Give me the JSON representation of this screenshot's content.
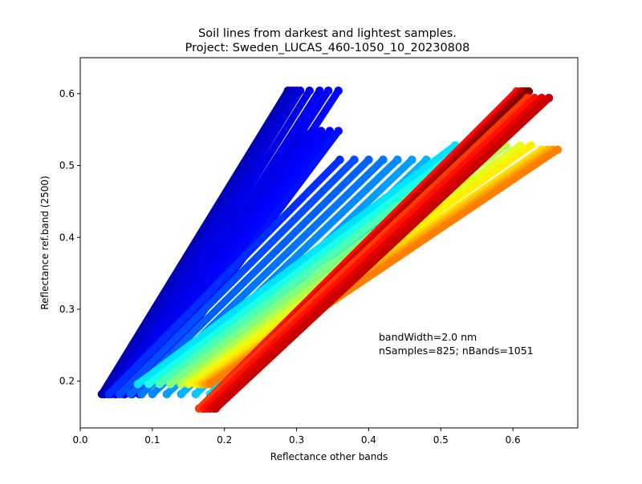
{
  "chart_data": {
    "type": "scatter",
    "title_line1": "Soil lines from darkest and lightest samples.",
    "title_line2": "Project: Sweden_LUCAS_460-1050_10_20230808",
    "xlabel": "Reflectance other bands",
    "ylabel": "Reflectance ref.band (2500)",
    "xlim": [
      0.0,
      0.69
    ],
    "ylim": [
      0.135,
      0.65
    ],
    "xticks": [
      0.0,
      0.1,
      0.2,
      0.3,
      0.4,
      0.5,
      0.6
    ],
    "xtick_labels": [
      "0.0",
      "0.1",
      "0.2",
      "0.3",
      "0.4",
      "0.5",
      "0.6"
    ],
    "yticks": [
      0.2,
      0.3,
      0.4,
      0.5,
      0.6
    ],
    "ytick_labels": [
      "0.2",
      "0.3",
      "0.4",
      "0.5",
      "0.6"
    ],
    "grid": false,
    "colormap": "jet",
    "annotation_line1": "bandWidth=2.0 nm",
    "annotation_line2": "nSamples=825; nBands=1051",
    "groups": [
      {
        "y_dark": 0.182,
        "y_light": 0.604,
        "segments": [
          {
            "x0": 0.03,
            "x1": 0.288,
            "c": 0.05
          },
          {
            "x0": 0.034,
            "x1": 0.292,
            "c": 0.06
          },
          {
            "x0": 0.038,
            "x1": 0.296,
            "c": 0.07
          },
          {
            "x0": 0.043,
            "x1": 0.3,
            "c": 0.08
          },
          {
            "x0": 0.048,
            "x1": 0.305,
            "c": 0.09
          },
          {
            "x0": 0.055,
            "x1": 0.318,
            "c": 0.1
          },
          {
            "x0": 0.062,
            "x1": 0.332,
            "c": 0.11
          },
          {
            "x0": 0.072,
            "x1": 0.344,
            "c": 0.12
          },
          {
            "x0": 0.082,
            "x1": 0.358,
            "c": 0.13
          }
        ]
      },
      {
        "y_dark": 0.182,
        "y_light": 0.548,
        "segments": [
          {
            "x0": 0.04,
            "x1": 0.31,
            "c": 0.1
          },
          {
            "x0": 0.05,
            "x1": 0.322,
            "c": 0.11
          },
          {
            "x0": 0.06,
            "x1": 0.334,
            "c": 0.12
          },
          {
            "x0": 0.072,
            "x1": 0.346,
            "c": 0.13
          },
          {
            "x0": 0.085,
            "x1": 0.358,
            "c": 0.14
          }
        ]
      },
      {
        "y_dark": 0.182,
        "y_light": 0.508,
        "segments": [
          {
            "x0": 0.04,
            "x1": 0.36,
            "c": 0.17
          },
          {
            "x0": 0.055,
            "x1": 0.38,
            "c": 0.2
          },
          {
            "x0": 0.07,
            "x1": 0.4,
            "c": 0.22
          },
          {
            "x0": 0.085,
            "x1": 0.42,
            "c": 0.24
          },
          {
            "x0": 0.1,
            "x1": 0.44,
            "c": 0.26
          },
          {
            "x0": 0.12,
            "x1": 0.46,
            "c": 0.28
          },
          {
            "x0": 0.14,
            "x1": 0.48,
            "c": 0.3
          },
          {
            "x0": 0.16,
            "x1": 0.5,
            "c": 0.32
          },
          {
            "x0": 0.18,
            "x1": 0.52,
            "c": 0.34
          }
        ]
      },
      {
        "y_dark": 0.196,
        "y_light": 0.528,
        "segments": [
          {
            "x0": 0.08,
            "x1": 0.52,
            "c": 0.35
          },
          {
            "x0": 0.095,
            "x1": 0.535,
            "c": 0.4
          },
          {
            "x0": 0.11,
            "x1": 0.55,
            "c": 0.45
          },
          {
            "x0": 0.125,
            "x1": 0.57,
            "c": 0.5
          },
          {
            "x0": 0.14,
            "x1": 0.59,
            "c": 0.55
          },
          {
            "x0": 0.15,
            "x1": 0.61,
            "c": 0.6
          },
          {
            "x0": 0.16,
            "x1": 0.625,
            "c": 0.64
          }
        ]
      },
      {
        "y_dark": 0.196,
        "y_light": 0.522,
        "segments": [
          {
            "x0": 0.165,
            "x1": 0.64,
            "c": 0.66
          },
          {
            "x0": 0.17,
            "x1": 0.648,
            "c": 0.69
          },
          {
            "x0": 0.175,
            "x1": 0.655,
            "c": 0.72
          },
          {
            "x0": 0.18,
            "x1": 0.662,
            "c": 0.75
          }
        ]
      },
      {
        "y_dark": 0.162,
        "y_light": 0.603,
        "segments": [
          {
            "x0": 0.165,
            "x1": 0.605,
            "c": 0.86
          },
          {
            "x0": 0.17,
            "x1": 0.61,
            "c": 0.9
          },
          {
            "x0": 0.175,
            "x1": 0.614,
            "c": 0.94
          },
          {
            "x0": 0.18,
            "x1": 0.618,
            "c": 0.97
          },
          {
            "x0": 0.185,
            "x1": 0.622,
            "c": 1.0
          }
        ]
      },
      {
        "y_dark": 0.162,
        "y_light": 0.594,
        "segments": [
          {
            "x0": 0.165,
            "x1": 0.62,
            "c": 0.82
          },
          {
            "x0": 0.172,
            "x1": 0.63,
            "c": 0.86
          },
          {
            "x0": 0.18,
            "x1": 0.64,
            "c": 0.9
          },
          {
            "x0": 0.188,
            "x1": 0.65,
            "c": 0.93
          }
        ]
      }
    ]
  }
}
